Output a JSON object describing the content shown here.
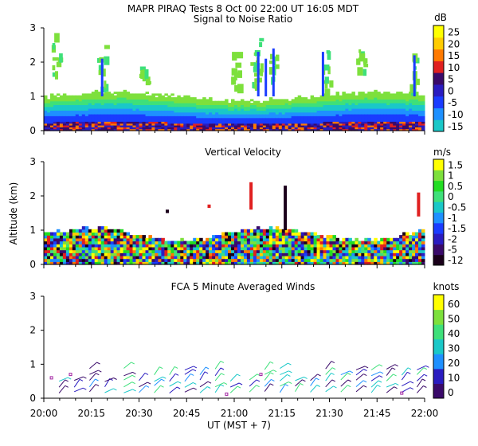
{
  "header": {
    "line1": "MAPR PIRAQ Tests  8 Oct 00  22:00 UT  16:05  MDT"
  },
  "x_axis": {
    "label": "UT  (MST + 7)",
    "ticks": [
      "20:00",
      "20:15",
      "20:30",
      "20:45",
      "21:00",
      "21:15",
      "21:30",
      "21:45",
      "22:00"
    ]
  },
  "y_axis_label": "Altitude (km)",
  "colors": {
    "snr": [
      "#7de03c",
      "#3ee07a",
      "#1ac8c8",
      "#1e90ff",
      "#1a3cff",
      "#2a1cc0",
      "#3a0a6a",
      "#e02020",
      "#ff7a00",
      "#ffcc00",
      "#ffff00"
    ],
    "velocity": [
      "#1a001a",
      "#3a0a6a",
      "#2a1cc0",
      "#1a3cff",
      "#1e90ff",
      "#1ac8c8",
      "#3ee07a",
      "#22dd22",
      "#7de03c",
      "#ffff00",
      "#ffcc00",
      "#ff7a00",
      "#e02020"
    ],
    "winds": [
      "#3a0a6a",
      "#2a1cc0",
      "#1e90ff",
      "#1ac8c8",
      "#3ee07a",
      "#7de03c",
      "#ffff00",
      "#ffcc00",
      "#ff7a00",
      "#e02020"
    ]
  },
  "chart_data": [
    {
      "type": "heatmap",
      "title": "Signal to Noise Ratio",
      "unit": "dB",
      "xlabel": "UT  (MST + 7)",
      "ylabel": "Altitude (km)",
      "xlim": [
        "20:00",
        "22:00"
      ],
      "ylim": [
        0,
        3
      ],
      "yticks": [
        "0",
        "1",
        "2",
        "3"
      ],
      "colorbar_ticks": [
        "25",
        "20",
        "15",
        "10",
        "5",
        "0",
        "-5",
        "-10",
        "-15"
      ]
    },
    {
      "type": "heatmap",
      "title": "Vertical Velocity",
      "unit": "m/s",
      "xlabel": "UT  (MST + 7)",
      "ylabel": "Altitude (km)",
      "xlim": [
        "20:00",
        "22:00"
      ],
      "ylim": [
        0,
        3
      ],
      "yticks": [
        "0",
        "1",
        "2",
        "3"
      ],
      "colorbar_ticks": [
        "1.5",
        "1",
        "0.5",
        "0",
        "-0.5",
        "-1",
        "-1.5",
        "-2",
        "-5",
        "-12"
      ]
    },
    {
      "type": "scatter",
      "title": "FCA 5 Minute Averaged Winds",
      "unit": "knots",
      "xlabel": "UT  (MST + 7)",
      "ylabel": "Altitude (km)",
      "xlim": [
        "20:00",
        "22:00"
      ],
      "ylim": [
        0,
        3
      ],
      "yticks": [
        "0",
        "1",
        "2",
        "3"
      ],
      "colorbar_ticks": [
        "60",
        "50",
        "40",
        "30",
        "20",
        "10",
        "0"
      ]
    }
  ]
}
